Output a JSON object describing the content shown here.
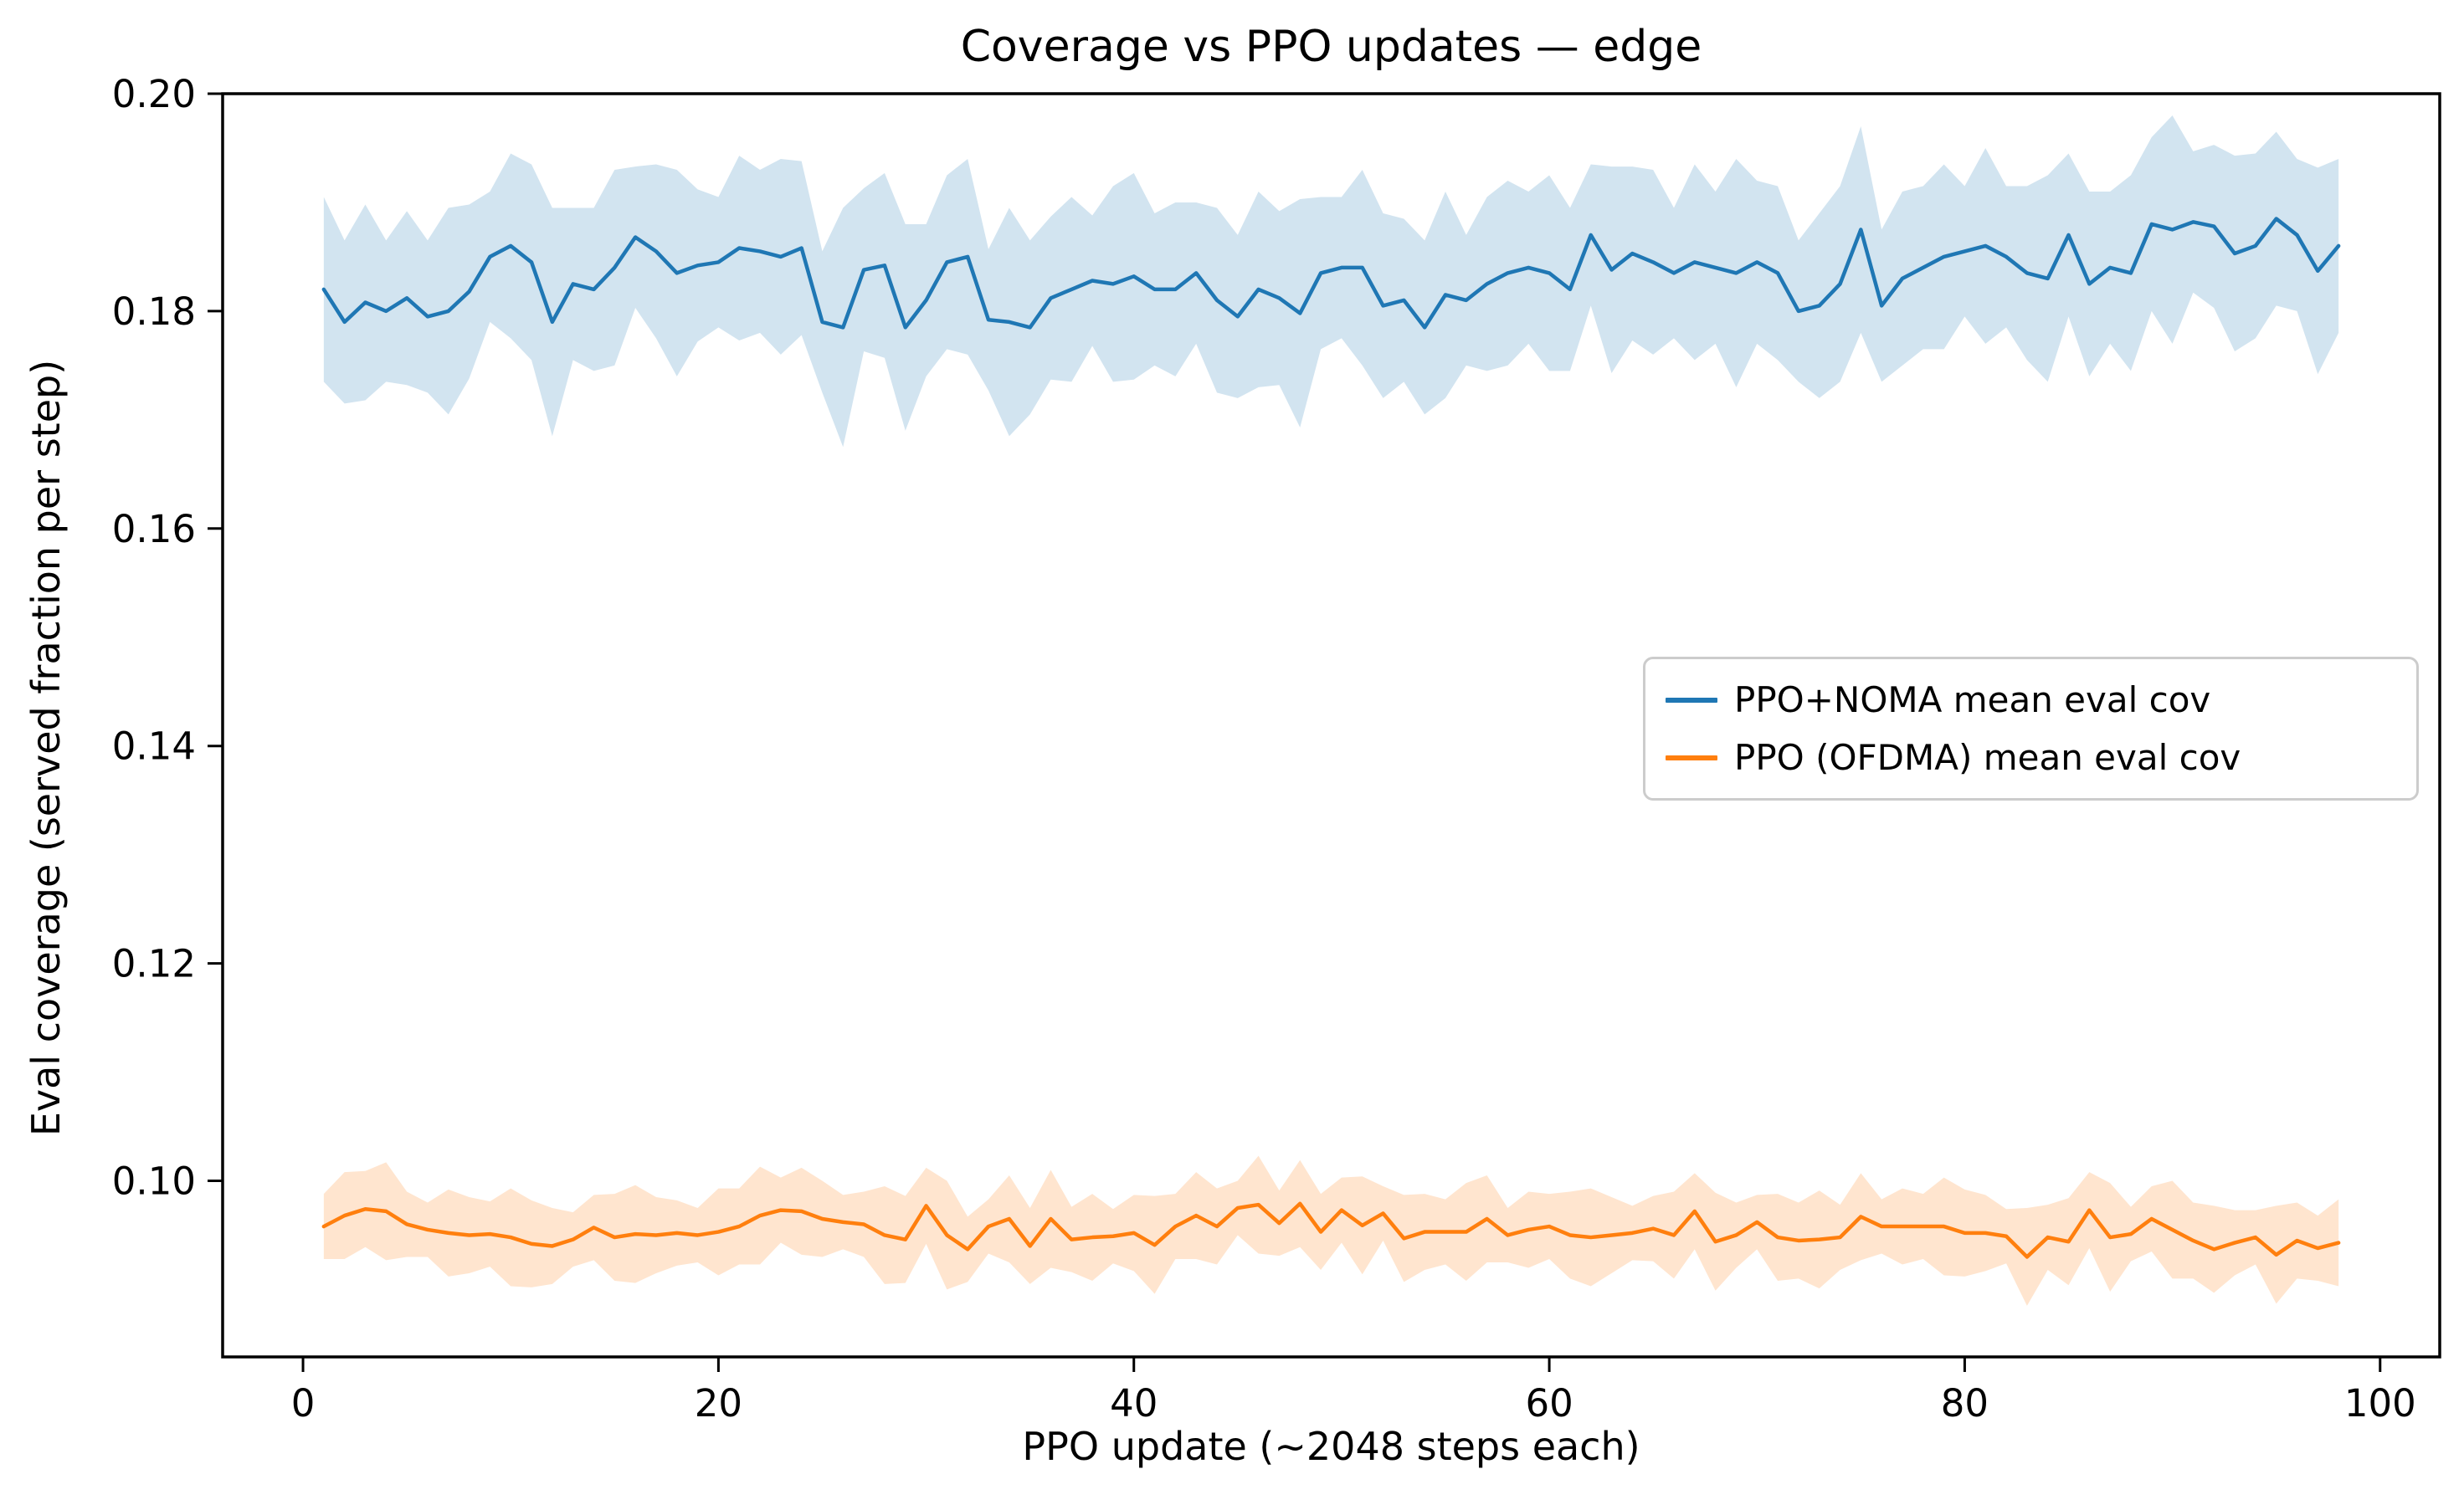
{
  "title": "Coverage vs PPO updates — edge",
  "xlabel": "PPO update (~2048 steps each)",
  "ylabel": "Eval coverage (served fraction per step)",
  "legend": {
    "position": "center right",
    "entries": [
      {
        "label": "PPO+NOMA mean eval cov",
        "color": "#1f77b4"
      },
      {
        "label": "PPO (OFDMA) mean eval cov",
        "color": "#ff7f0e"
      }
    ]
  },
  "colors": {
    "blue_line": "#1f77b4",
    "blue_band": "#d2e4f0",
    "orange_line": "#ff7f0e",
    "orange_band": "#ffe5cf",
    "spine": "#000000",
    "legend_border": "#cccccc",
    "background": "#ffffff"
  },
  "chart_data": {
    "type": "line",
    "title": "Coverage vs PPO updates — edge",
    "xlabel": "PPO update (~2048 steps each)",
    "ylabel": "Eval coverage (served fraction per step)",
    "grid": false,
    "legend_position": "center right",
    "xlim": [
      -3.87,
      102.87
    ],
    "ylim": [
      0.0838,
      0.2
    ],
    "x_ticks": [
      0,
      20,
      40,
      60,
      80,
      100
    ],
    "y_ticks": [
      {
        "v": 0.1,
        "label": "0.10"
      },
      {
        "v": 0.12,
        "label": "0.12"
      },
      {
        "v": 0.14,
        "label": "0.14"
      },
      {
        "v": 0.16,
        "label": "0.16"
      },
      {
        "v": 0.18,
        "label": "0.18"
      },
      {
        "v": 0.2,
        "label": "0.20"
      }
    ],
    "x_start": 1,
    "x_step": 1,
    "series": [
      {
        "name": "PPO+NOMA mean eval cov",
        "color": "#1f77b4",
        "band_color": "#d2e4f0",
        "mean": [
          0.182,
          0.179,
          0.1808,
          0.18,
          0.1812,
          0.1795,
          0.18,
          0.1818,
          0.185,
          0.186,
          0.1845,
          0.179,
          0.1825,
          0.182,
          0.184,
          0.1868,
          0.1855,
          0.1835,
          0.1842,
          0.1845,
          0.1858,
          0.1855,
          0.185,
          0.1858,
          0.179,
          0.1785,
          0.1838,
          0.1842,
          0.1785,
          0.181,
          0.1845,
          0.185,
          0.1792,
          0.179,
          0.1785,
          0.1812,
          0.182,
          0.1828,
          0.1825,
          0.1832,
          0.182,
          0.182,
          0.1835,
          0.181,
          0.1795,
          0.182,
          0.1812,
          0.1798,
          0.1835,
          0.184,
          0.184,
          0.1805,
          0.181,
          0.1785,
          0.1815,
          0.181,
          0.1825,
          0.1835,
          0.184,
          0.1835,
          0.182,
          0.187,
          0.1838,
          0.1853,
          0.1845,
          0.1835,
          0.1845,
          0.184,
          0.1835,
          0.1845,
          0.1835,
          0.18,
          0.1805,
          0.1825,
          0.1875,
          0.1805,
          0.183,
          0.184,
          0.185,
          0.1855,
          0.186,
          0.185,
          0.1835,
          0.183,
          0.187,
          0.1825,
          0.184,
          0.1835,
          0.188,
          0.1875,
          0.1882,
          0.1878,
          0.1853,
          0.186,
          0.1885,
          0.187,
          0.1837,
          0.186
        ],
        "band_halfwidth": [
          0.0085,
          0.0075,
          0.009,
          0.0065,
          0.008,
          0.007,
          0.0095,
          0.008,
          0.006,
          0.0085,
          0.009,
          0.0105,
          0.007,
          0.0075,
          0.009,
          0.0065,
          0.008,
          0.0095,
          0.007,
          0.006,
          0.0085,
          0.0075,
          0.009,
          0.008,
          0.0065,
          0.011,
          0.0075,
          0.0085,
          0.0095,
          0.007,
          0.008,
          0.009,
          0.0065,
          0.0105,
          0.008,
          0.0075,
          0.0085,
          0.006,
          0.009,
          0.0095,
          0.007,
          0.008,
          0.0065,
          0.0085,
          0.0075,
          0.009,
          0.008,
          0.0105,
          0.007,
          0.0065,
          0.009,
          0.0085,
          0.0075,
          0.008,
          0.0095,
          0.006,
          0.008,
          0.0085,
          0.007,
          0.009,
          0.0075,
          0.0065,
          0.0095,
          0.008,
          0.0085,
          0.006,
          0.009,
          0.007,
          0.0105,
          0.0075,
          0.008,
          0.0065,
          0.0085,
          0.009,
          0.0095,
          0.007,
          0.008,
          0.0075,
          0.0085,
          0.006,
          0.009,
          0.0065,
          0.008,
          0.0095,
          0.0075,
          0.0085,
          0.007,
          0.009,
          0.008,
          0.0105,
          0.0065,
          0.0075,
          0.009,
          0.0085,
          0.008,
          0.007,
          0.0095,
          0.008
        ]
      },
      {
        "name": "PPO (OFDMA) mean eval cov",
        "color": "#ff7f0e",
        "band_color": "#ffe5cf",
        "mean": [
          0.0958,
          0.0968,
          0.0974,
          0.0972,
          0.096,
          0.0955,
          0.0952,
          0.095,
          0.0951,
          0.0948,
          0.0942,
          0.094,
          0.0946,
          0.0957,
          0.0948,
          0.0951,
          0.095,
          0.0952,
          0.095,
          0.0953,
          0.0958,
          0.0968,
          0.0973,
          0.0972,
          0.0965,
          0.0962,
          0.096,
          0.095,
          0.0946,
          0.0977,
          0.095,
          0.0937,
          0.0958,
          0.0965,
          0.094,
          0.0965,
          0.0946,
          0.0948,
          0.0949,
          0.0952,
          0.0941,
          0.0958,
          0.0968,
          0.0958,
          0.0975,
          0.0978,
          0.0961,
          0.0979,
          0.0953,
          0.0973,
          0.0959,
          0.097,
          0.0947,
          0.0953,
          0.0953,
          0.0953,
          0.0965,
          0.095,
          0.0955,
          0.0958,
          0.095,
          0.0948,
          0.095,
          0.0952,
          0.0956,
          0.095,
          0.0972,
          0.0944,
          0.095,
          0.0962,
          0.0948,
          0.0945,
          0.0946,
          0.0948,
          0.0967,
          0.0958,
          0.0958,
          0.0958,
          0.0958,
          0.0952,
          0.0952,
          0.0949,
          0.093,
          0.0948,
          0.0944,
          0.0973,
          0.0948,
          0.0951,
          0.0965,
          0.0955,
          0.0945,
          0.0937,
          0.0943,
          0.0948,
          0.0932,
          0.0945,
          0.0938,
          0.0943
        ],
        "band_halfwidth": [
          0.003,
          0.004,
          0.0035,
          0.0045,
          0.003,
          0.0025,
          0.004,
          0.0035,
          0.003,
          0.0045,
          0.004,
          0.0035,
          0.0025,
          0.003,
          0.004,
          0.0045,
          0.0035,
          0.003,
          0.0025,
          0.004,
          0.0035,
          0.0045,
          0.003,
          0.004,
          0.0035,
          0.0025,
          0.003,
          0.0045,
          0.004,
          0.0035,
          0.005,
          0.003,
          0.0025,
          0.004,
          0.0035,
          0.0045,
          0.003,
          0.004,
          0.0025,
          0.0035,
          0.0045,
          0.003,
          0.004,
          0.0035,
          0.0025,
          0.0045,
          0.003,
          0.004,
          0.0035,
          0.003,
          0.0045,
          0.0025,
          0.004,
          0.0035,
          0.003,
          0.0045,
          0.004,
          0.0025,
          0.0035,
          0.003,
          0.004,
          0.0045,
          0.0035,
          0.0025,
          0.003,
          0.004,
          0.0035,
          0.0045,
          0.003,
          0.0025,
          0.004,
          0.0035,
          0.0045,
          0.003,
          0.004,
          0.0025,
          0.0035,
          0.003,
          0.0045,
          0.004,
          0.0035,
          0.0025,
          0.0045,
          0.003,
          0.004,
          0.0035,
          0.005,
          0.0025,
          0.003,
          0.0045,
          0.0035,
          0.004,
          0.003,
          0.0025,
          0.0045,
          0.0035,
          0.003,
          0.004
        ]
      }
    ]
  }
}
